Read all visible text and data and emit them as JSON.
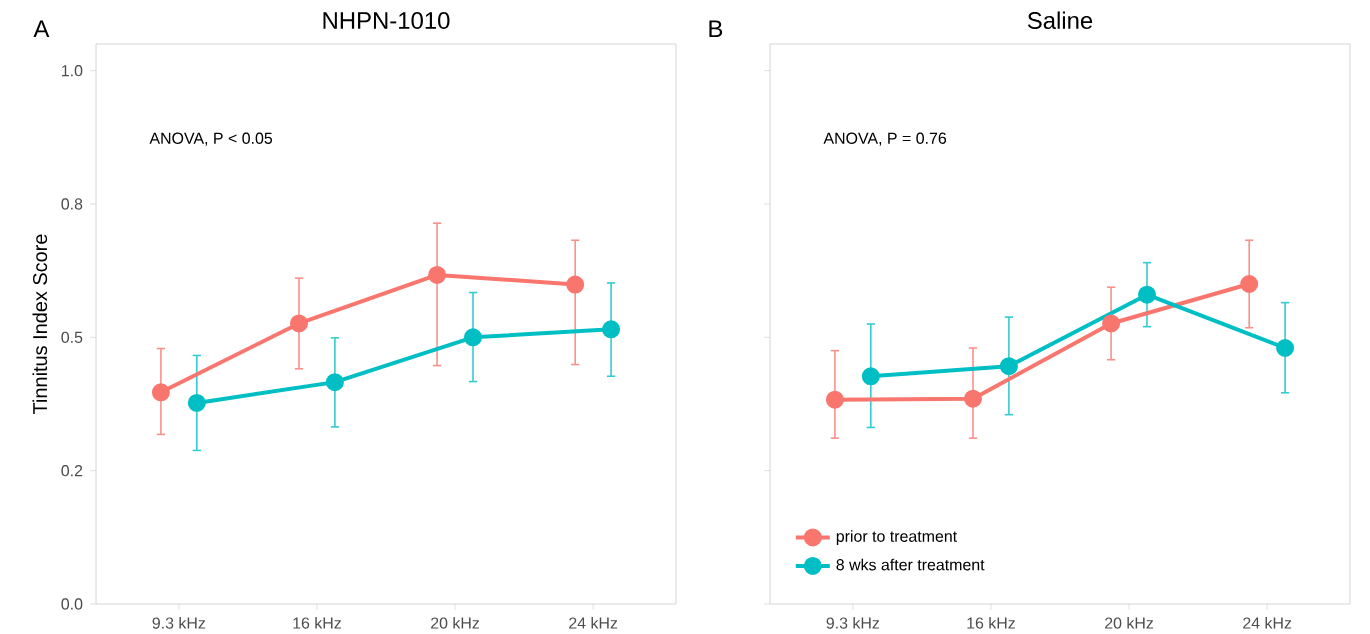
{
  "chart_data": [
    {
      "type": "line",
      "title": "NHPN-1010",
      "ylabel": "Tinnitus Index Score",
      "annotations": [
        "A",
        "ANOVA, P < 0.05"
      ],
      "categories": [
        "9.3 kHz",
        "16 kHz",
        "20 kHz",
        "24 kHz"
      ],
      "ylim": [
        0,
        1.05
      ],
      "yticks": [
        {
          "value": 0,
          "label": "0.0"
        },
        {
          "value": 0.25,
          "label": "0.2"
        },
        {
          "value": 0.5,
          "label": "0.5"
        },
        {
          "value": 0.75,
          "label": "0.8"
        },
        {
          "value": 1,
          "label": "1.0"
        }
      ],
      "series": [
        {
          "color": "#f8766d",
          "values": [
            0.397,
            0.526,
            0.617,
            0.599
          ],
          "errors": [
            [
              0.318,
              0.479
            ],
            [
              0.441,
              0.611
            ],
            [
              0.447,
              0.714
            ],
            [
              0.449,
              0.682
            ]
          ]
        },
        {
          "color": "#00bfc4",
          "values": [
            0.377,
            0.416,
            0.5,
            0.515
          ],
          "errors": [
            [
              0.288,
              0.466
            ],
            [
              0.332,
              0.499
            ],
            [
              0.417,
              0.584
            ],
            [
              0.427,
              0.602
            ]
          ]
        }
      ],
      "grid": false,
      "legend": false,
      "marker": "circle",
      "line_style": "solid"
    },
    {
      "type": "line",
      "title": "Saline",
      "annotations": [
        "B",
        "ANOVA, P = 0.76"
      ],
      "categories": [
        "9.3 kHz",
        "16 kHz",
        "20 kHz",
        "24 kHz"
      ],
      "ylim": [
        0,
        1.05
      ],
      "yticks": [
        {
          "value": 0,
          "label": null
        },
        {
          "value": 0.25,
          "label": null
        },
        {
          "value": 0.5,
          "label": null
        },
        {
          "value": 0.75,
          "label": null
        },
        {
          "value": 1,
          "label": null
        }
      ],
      "tick_labels": "x",
      "series": [
        {
          "name": "prior to treatment",
          "color": "#f8766d",
          "values": [
            0.383,
            0.385,
            0.526,
            0.6
          ],
          "errors": [
            [
              0.311,
              0.475
            ],
            [
              0.311,
              0.48
            ],
            [
              0.458,
              0.594
            ],
            [
              0.518,
              0.682
            ]
          ]
        },
        {
          "name": "8 wks after treatment",
          "color": "#00bfc4",
          "values": [
            0.427,
            0.446,
            0.58,
            0.48
          ],
          "errors": [
            [
              0.331,
              0.525
            ],
            [
              0.355,
              0.538
            ],
            [
              0.52,
              0.64
            ],
            [
              0.396,
              0.565
            ]
          ]
        }
      ],
      "grid": false,
      "legend": "bottom left",
      "marker": "circle",
      "line_style": "solid"
    }
  ]
}
